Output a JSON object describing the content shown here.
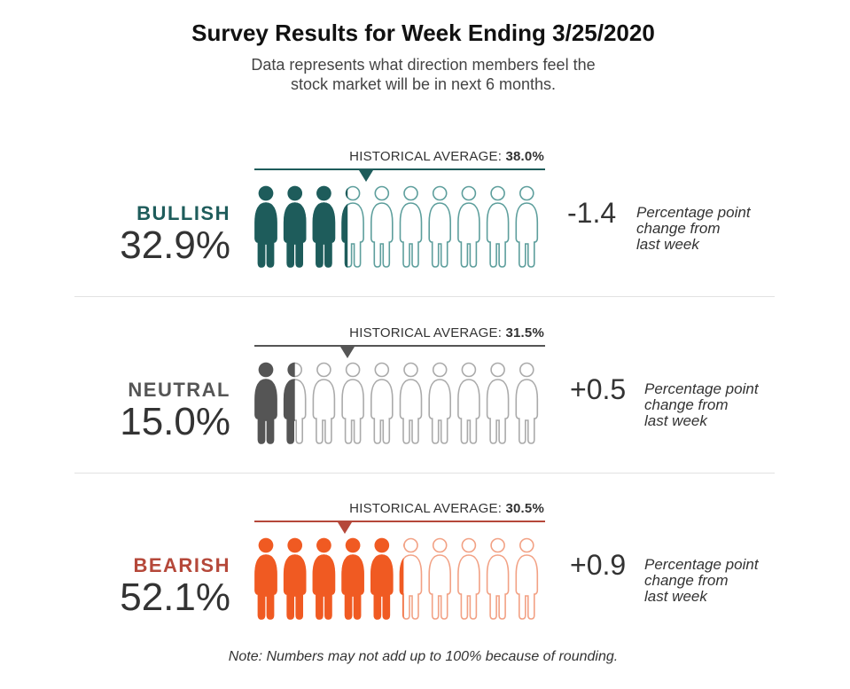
{
  "title": "Survey Results for Week Ending 3/25/2020",
  "subtitle_lines": [
    "Data represents what direction members feel the",
    "stock market will be in next 6 months."
  ],
  "note": "Note: Numbers may not add up to 100% because of rounding.",
  "colors": {
    "bullish": "#1e5c5b",
    "bullish_outline": "#5d9e9c",
    "neutral": "#555555",
    "neutral_outline": "#aaaaaa",
    "bearish": "#f05a22",
    "bearish_outline": "#f2a184",
    "bearish_label": "#b5483a"
  },
  "chart_data": {
    "type": "pictograph",
    "title": "Survey Results for Week Ending 3/25/2020",
    "subtitle": "Data represents what direction members feel the stock market will be in next 6 months.",
    "icons_per_row": 10,
    "percent_per_icon": 10,
    "categories": [
      {
        "key": "bullish",
        "label": "BULLISH",
        "value": 32.9,
        "value_text": "32.9%",
        "historical_label": "HISTORICAL AVERAGE:",
        "historical_value": 38.0,
        "historical_text": "38.0%",
        "change": -1.4,
        "change_text": "-1.4",
        "change_desc": [
          "Percentage point",
          "change from",
          "last week"
        ]
      },
      {
        "key": "neutral",
        "label": "NEUTRAL",
        "value": 15.0,
        "value_text": "15.0%",
        "historical_label": "HISTORICAL AVERAGE:",
        "historical_value": 31.5,
        "historical_text": "31.5%",
        "change": 0.5,
        "change_text": "+0.5",
        "change_desc": [
          "Percentage point",
          "change from",
          "last week"
        ]
      },
      {
        "key": "bearish",
        "label": "BEARISH",
        "value": 52.1,
        "value_text": "52.1%",
        "historical_label": "HISTORICAL AVERAGE:",
        "historical_value": 30.5,
        "historical_text": "30.5%",
        "change": 0.9,
        "change_text": "+0.9",
        "change_desc": [
          "Percentage point",
          "change from",
          "last week"
        ]
      }
    ]
  }
}
